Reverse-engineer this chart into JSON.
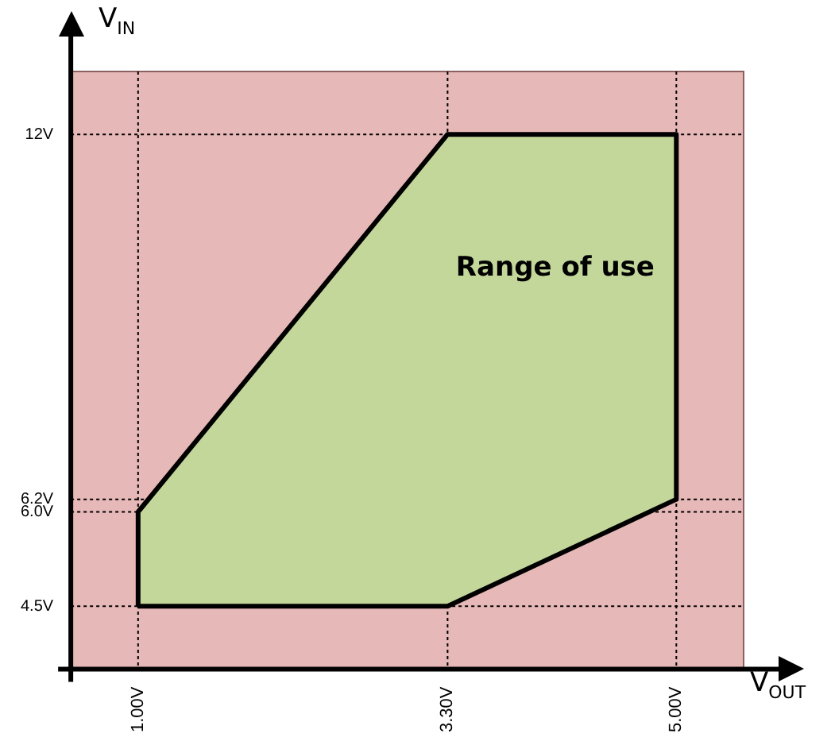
{
  "chart_data": {
    "type": "area",
    "xlabel": "V$_{OUT}$",
    "ylabel": "V$_{IN}$",
    "xlim": [
      0.5,
      5.5
    ],
    "ylim": [
      3.5,
      13
    ],
    "xticks": [
      {
        "value": 1.0,
        "label": "1.00V"
      },
      {
        "value": 3.3,
        "label": "3.30V"
      },
      {
        "value": 5.0,
        "label": "5.00V"
      }
    ],
    "yticks": [
      {
        "value": 4.5,
        "label": "4.5V"
      },
      {
        "value": 6.0,
        "label": "6.0V"
      },
      {
        "value": 6.2,
        "label": "6.2V"
      },
      {
        "value": 12,
        "label": "12V"
      }
    ],
    "series": [
      {
        "color": "#c4d79b",
        "x": [
          1.0,
          1.0,
          3.3,
          5.0,
          5.0,
          3.3,
          1.0
        ],
        "values": [
          4.5,
          6.0,
          12,
          12,
          6.2,
          4.5,
          4.5
        ]
      }
    ],
    "annotations": [
      "Range of use"
    ],
    "grid": true,
    "line_style": "solid",
    "marker": "none",
    "legend": false
  }
}
